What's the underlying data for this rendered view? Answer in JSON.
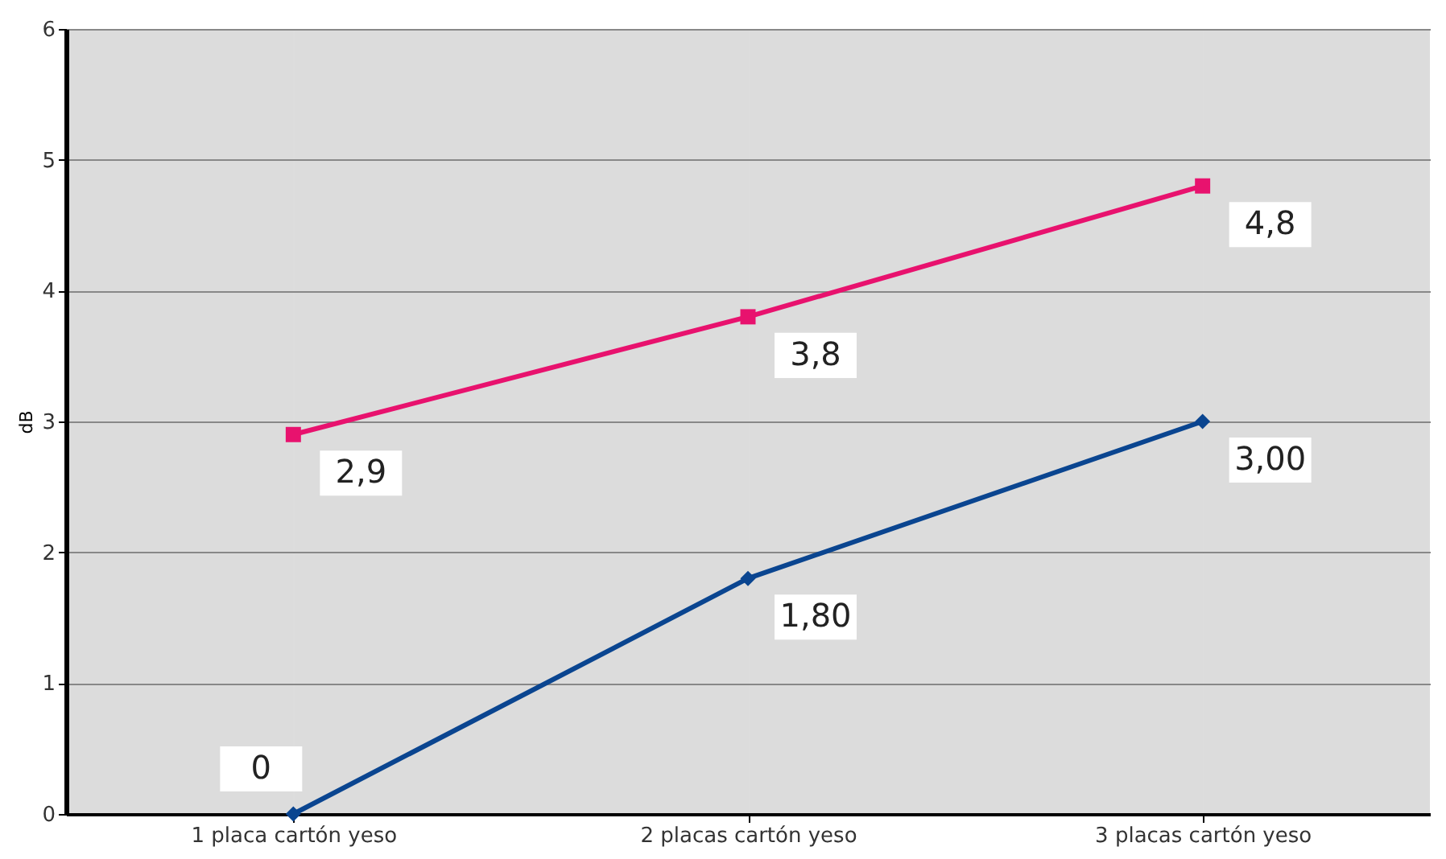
{
  "chart_data": {
    "type": "line",
    "ylabel": "dB",
    "categories": [
      "1 placa cartón yeso",
      "2 placas cartón yeso",
      "3 placas cartón yeso"
    ],
    "series": [
      {
        "color": "#e8126e",
        "values": [
          2.9,
          3.8,
          4.8
        ],
        "value_labels": [
          "2,9",
          "3,8",
          "4,8"
        ],
        "marker": "square"
      },
      {
        "color": "#0a4590",
        "values": [
          0,
          1.8,
          3.0
        ],
        "value_labels": [
          "0",
          "1,80",
          "3,00"
        ],
        "marker": "diamond"
      }
    ],
    "ylim": [
      0,
      6
    ],
    "yticks": [
      0,
      1,
      2,
      3,
      4,
      5,
      6
    ],
    "grid": true
  }
}
